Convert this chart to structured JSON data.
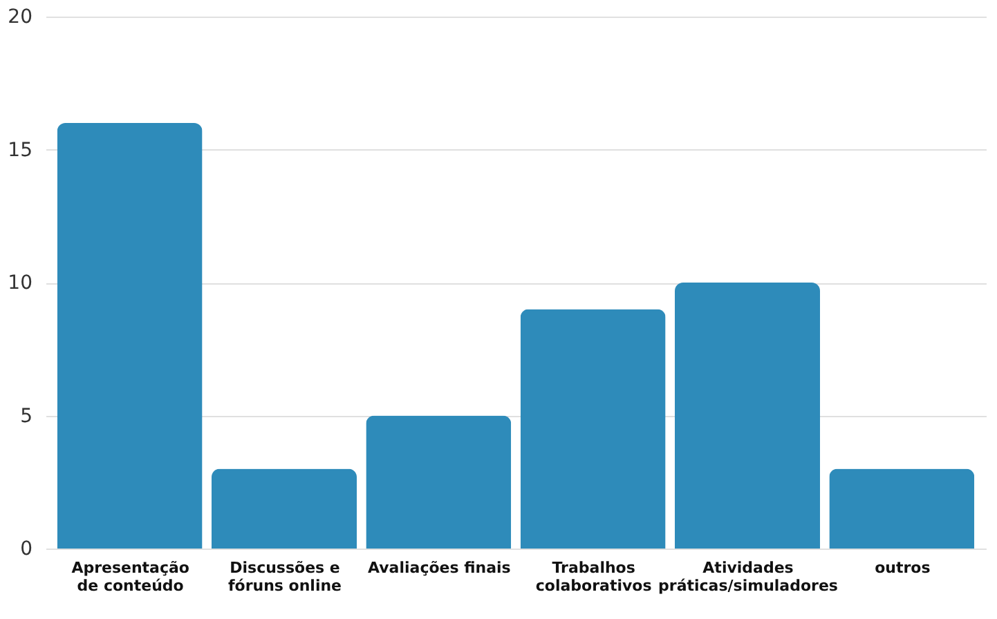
{
  "chart_data": {
    "type": "bar",
    "categories": [
      "Apresentação\nde conteúdo",
      "Discussões e\nfóruns online",
      "Avaliações finais",
      "Trabalhos\ncolaborativos",
      "Atividades\npráticas/simuladores",
      "outros"
    ],
    "values": [
      16,
      3,
      5,
      9,
      10,
      3
    ],
    "color": "#2e8bba",
    "ylim": [
      0,
      20
    ],
    "yticks": [
      0,
      5,
      10,
      15,
      20
    ],
    "grid": "y"
  }
}
